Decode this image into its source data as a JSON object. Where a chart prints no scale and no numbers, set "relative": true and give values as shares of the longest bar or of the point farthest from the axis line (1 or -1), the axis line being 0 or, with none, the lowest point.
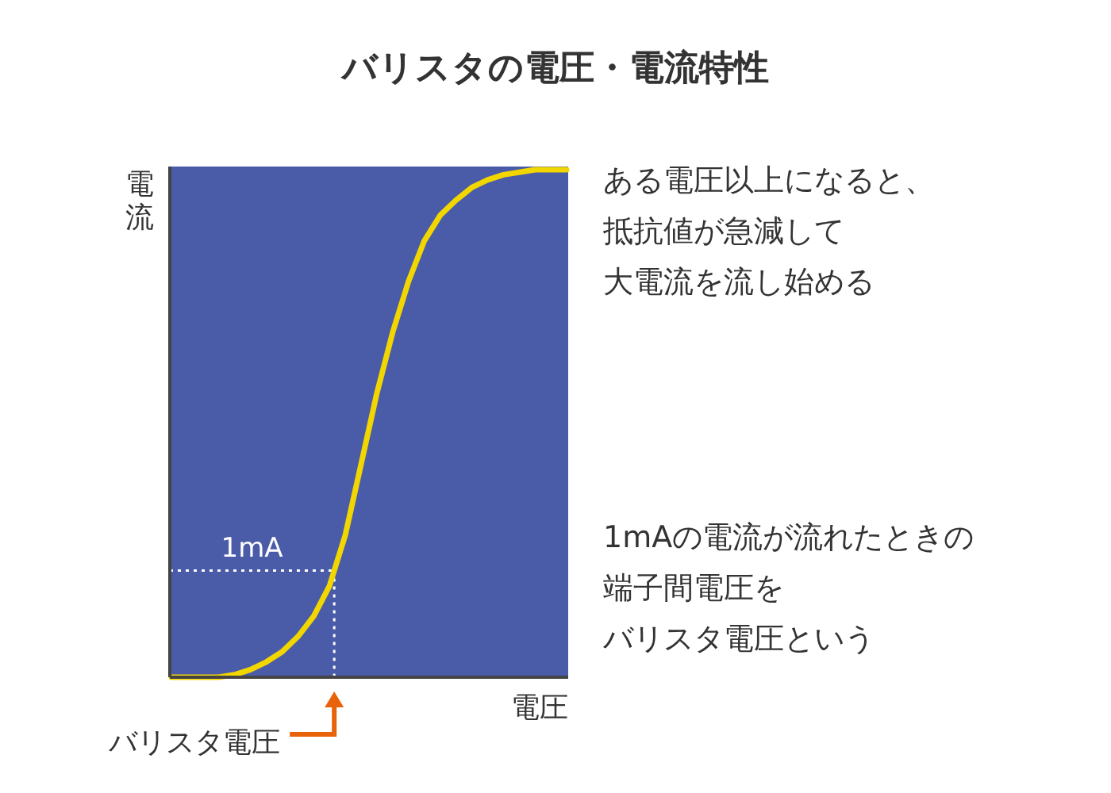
{
  "chart_data": {
    "type": "line",
    "title": "バリスタの電圧・電流特性",
    "xlabel": "電圧",
    "ylabel": "電流",
    "relative": true,
    "categories": [
      null,
      null,
      null,
      null,
      null,
      null,
      null,
      null,
      null,
      null,
      null,
      null,
      null,
      null,
      null,
      null,
      null,
      null,
      null,
      null,
      null,
      null,
      null,
      null,
      null,
      null
    ],
    "series": [
      {
        "color": "#f2d600",
        "values": [
          0,
          0,
          0,
          0,
          0.005,
          0.015,
          0.03,
          0.05,
          0.08,
          0.12,
          0.18,
          0.28,
          0.42,
          0.56,
          0.68,
          0.78,
          0.86,
          0.91,
          0.94,
          0.965,
          0.98,
          0.99,
          0.995,
          1,
          1,
          1
        ]
      }
    ],
    "ref_lines": [
      {
        "axis": "y",
        "value": 0.21,
        "label": "1mA",
        "color": "#ffffff",
        "line_style": "dotted"
      }
    ],
    "annotations": [
      "ある電圧以上になると、",
      "抵抗値が急減して",
      "大電流を流し始める",
      "1mAの電流が流れたときの",
      "端子間電圧を",
      "バリスタ電圧という",
      "バリスタ電圧"
    ]
  }
}
